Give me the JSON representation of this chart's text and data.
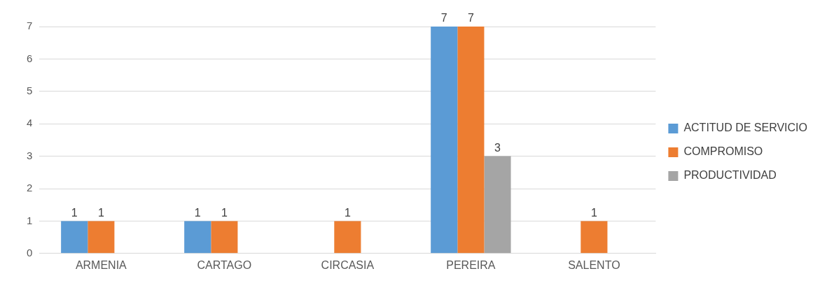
{
  "chart_data": {
    "type": "bar",
    "categories": [
      "ARMENIA",
      "CARTAGO",
      "CIRCASIA",
      "PEREIRA",
      "SALENTO"
    ],
    "series": [
      {
        "name": "ACTITUD DE SERVICIO",
        "color": "#5b9bd5",
        "values": [
          1,
          1,
          null,
          7,
          null
        ]
      },
      {
        "name": "COMPROMISO",
        "color": "#ed7d31",
        "values": [
          1,
          1,
          1,
          7,
          1
        ]
      },
      {
        "name": "PRODUCTIVIDAD",
        "color": "#a5a5a5",
        "values": [
          null,
          null,
          null,
          3,
          null
        ]
      }
    ],
    "ylim": [
      0,
      7
    ],
    "yticks": [
      0,
      1,
      2,
      3,
      4,
      5,
      6,
      7
    ],
    "grid": "y",
    "legend": "right",
    "data_labels": true
  }
}
